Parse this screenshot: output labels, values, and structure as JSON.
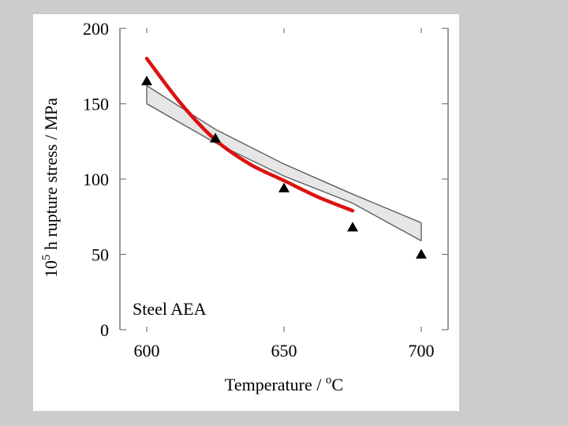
{
  "chart_data": {
    "type": "scatter",
    "title": "",
    "xlabel": {
      "main": "Temperature / ",
      "sup": "o",
      "unit": "C"
    },
    "ylabel": {
      "pre": "10",
      "sup": "5",
      "main": " h rupture stress / MPa"
    },
    "xlim": [
      600,
      700
    ],
    "ylim": [
      0,
      200
    ],
    "x_ticks": [
      600,
      650,
      700
    ],
    "y_ticks": [
      0,
      50,
      100,
      150,
      200
    ],
    "x_tick_labels": [
      "600",
      "650",
      "700"
    ],
    "y_tick_labels": [
      "0",
      "50",
      "100",
      "150",
      "200"
    ],
    "annotation": "Steel AEA",
    "grid": false,
    "legend": "none",
    "series": [
      {
        "kind": "points",
        "marker": "triangle",
        "color": "#000000",
        "x": [
          600,
          625,
          650,
          675,
          700
        ],
        "y": [
          165,
          127,
          94,
          68,
          50
        ]
      },
      {
        "kind": "band",
        "color": "#e6e6e6",
        "edge_color": "#555555",
        "x": [
          600,
          625,
          650,
          675,
          700
        ],
        "upper": [
          162,
          133,
          110,
          90,
          71
        ],
        "lower": [
          150,
          124,
          102,
          84,
          59
        ]
      },
      {
        "kind": "line",
        "color": "#dd1111",
        "x": [
          600,
          612.5,
          625,
          637.5,
          650,
          662.5,
          675
        ],
        "y": [
          180,
          150,
          126,
          110,
          99,
          88,
          79
        ]
      }
    ]
  }
}
